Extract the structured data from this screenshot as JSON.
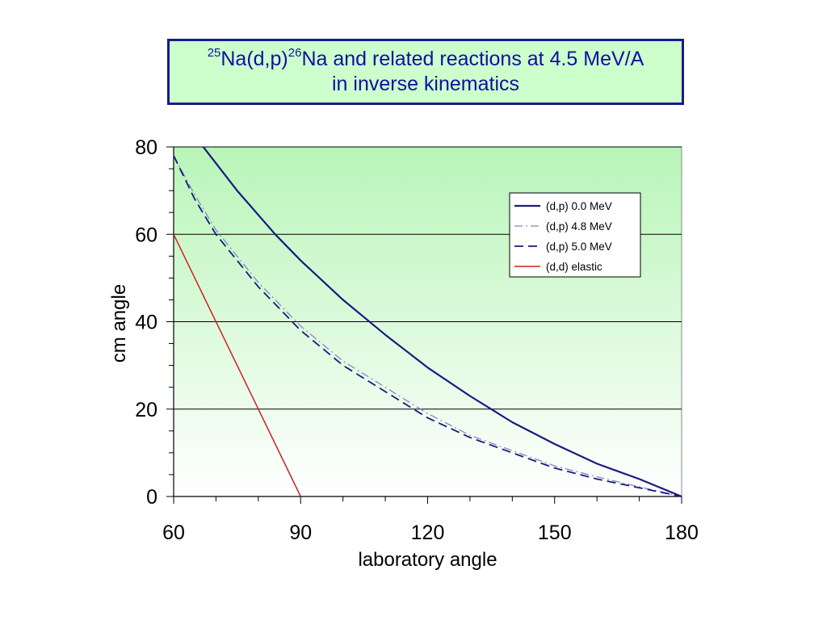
{
  "title": {
    "sup1": "25",
    "part1": "Na(d,p)",
    "sup2": "26",
    "part2": "Na and related reactions at 4.5 MeV/A",
    "line2": "in inverse kinematics"
  },
  "colors": {
    "title_bg": "#ccffcc",
    "title_border": "#1a1a8c",
    "title_text": "#1010a0",
    "plot_bg_top": "#b8f5b8",
    "plot_bg_bottom": "#ffffff",
    "navy": "#1a1a80",
    "red": "#cc2222"
  },
  "chart_data": {
    "type": "line",
    "title": "",
    "xlabel": "laboratory angle",
    "ylabel": "cm angle",
    "xlim": [
      60,
      180
    ],
    "ylim": [
      0,
      80
    ],
    "xticks": [
      60,
      90,
      120,
      150,
      180
    ],
    "yticks": [
      0,
      20,
      40,
      60,
      80
    ],
    "xtick_labels": [
      "60",
      "90",
      "120",
      "150",
      "180"
    ],
    "ytick_labels": [
      "0",
      "20",
      "40",
      "60",
      "80"
    ],
    "x_minor_step": 10,
    "y_minor_step": 5,
    "grid": "horizontal major",
    "legend_position": "top-right",
    "series": [
      {
        "name": "(d,p) 0.0 MeV",
        "color": "#1a1a80",
        "dash": "solid",
        "x": [
          67,
          75,
          84,
          90,
          100,
          110,
          120,
          130,
          140,
          150,
          160,
          170,
          180
        ],
        "y": [
          80,
          70,
          60,
          54,
          45,
          37,
          29.5,
          23,
          17,
          12,
          7.5,
          4,
          0
        ]
      },
      {
        "name": "(d,p) 4.8 MeV",
        "color": "#8888bb",
        "dash": "dash-dot",
        "x": [
          60,
          65,
          70,
          75,
          80,
          90,
          100,
          110,
          120,
          130,
          140,
          150,
          160,
          170,
          180
        ],
        "y": [
          78,
          69,
          61,
          55,
          49,
          39,
          31,
          25,
          19,
          14,
          10.5,
          7,
          4.5,
          2.2,
          0
        ]
      },
      {
        "name": "(d,p) 5.0 MeV",
        "color": "#1a1a80",
        "dash": "long-dash",
        "x": [
          60,
          65,
          70,
          75,
          80,
          90,
          100,
          110,
          120,
          130,
          140,
          150,
          160,
          170,
          180
        ],
        "y": [
          78,
          68,
          60,
          54,
          48,
          38,
          30,
          24,
          18,
          13.5,
          10,
          6.5,
          4,
          2,
          0
        ]
      },
      {
        "name": "(d,d) elastic",
        "color": "#cc2222",
        "dash": "solid",
        "x": [
          60,
          90
        ],
        "y": [
          60,
          0
        ]
      }
    ]
  }
}
